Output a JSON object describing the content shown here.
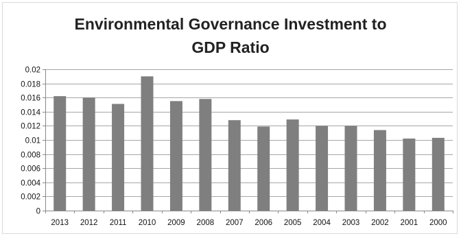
{
  "chart_data": {
    "type": "bar",
    "title_lines": [
      "Environmental Governance Investment to",
      "GDP Ratio"
    ],
    "categories": [
      "2013",
      "2012",
      "2011",
      "2010",
      "2009",
      "2008",
      "2007",
      "2006",
      "2005",
      "2004",
      "2003",
      "2002",
      "2001",
      "2000"
    ],
    "values": [
      0.0162,
      0.016,
      0.0151,
      0.019,
      0.0155,
      0.0158,
      0.0128,
      0.0119,
      0.0129,
      0.012,
      0.012,
      0.0114,
      0.0102,
      0.0103
    ],
    "y_ticks": [
      "0",
      "0.002",
      "0.004",
      "0.006",
      "0.008",
      "0.01",
      "0.012",
      "0.014",
      "0.016",
      "0.018",
      "0.02"
    ],
    "ylim": [
      0,
      0.02
    ],
    "grid": true,
    "legend": "none",
    "bar_color": "#7f7f7f",
    "grid_color": "#a6a6a6"
  }
}
